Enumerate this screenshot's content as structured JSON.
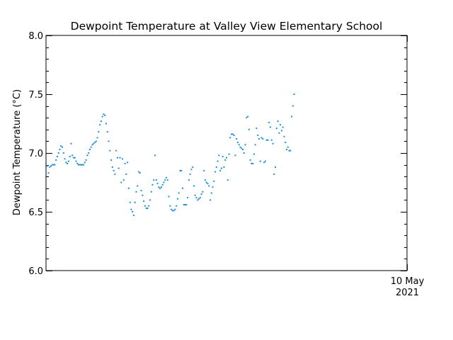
{
  "chart_data": {
    "type": "scatter",
    "title": "Dewpoint Temperature at Valley View Elementary School",
    "ylabel": "Dewpoint Temperature (°C)",
    "xlabel": "",
    "ylim": [
      6.0,
      8.0
    ],
    "yticks": [
      "6.0",
      "6.5",
      "7.0",
      "7.5",
      "8.0"
    ],
    "xlim": [
      "2021-05-09 00:00",
      "2021-05-10 00:00"
    ],
    "x_tick_labels": [
      {
        "line1": "10 May",
        "line2": "2021",
        "at": "2021-05-10 00:00"
      }
    ],
    "x_start": "2021-05-09 00:00",
    "step_minutes": 5,
    "grid": false,
    "legend": "none",
    "color": "#1f8fd8",
    "series": [
      {
        "values": [
          6.9,
          6.89,
          6.83,
          6.88,
          6.89,
          6.9,
          6.9,
          6.9,
          6.94,
          6.97,
          7.0,
          7.03,
          7.06,
          7.05,
          7.0,
          6.95,
          6.92,
          6.91,
          6.93,
          6.97,
          7.08,
          6.98,
          6.96,
          6.96,
          6.93,
          6.91,
          6.9,
          6.9,
          6.9,
          6.9,
          6.9,
          6.92,
          6.94,
          6.98,
          7.0,
          7.03,
          7.05,
          7.07,
          7.08,
          7.09,
          7.1,
          7.13,
          7.18,
          7.24,
          7.27,
          7.31,
          7.33,
          7.32,
          7.25,
          7.18,
          7.1,
          7.02,
          6.94,
          6.88,
          6.85,
          6.82,
          7.02,
          6.96,
          6.87,
          6.96,
          6.75,
          6.95,
          6.77,
          6.91,
          6.82,
          6.92,
          6.7,
          6.58,
          6.52,
          6.5,
          6.47,
          6.58,
          6.67,
          6.72,
          6.84,
          6.83,
          6.68,
          6.64,
          6.59,
          6.55,
          6.53,
          6.53,
          6.55,
          6.6,
          6.67,
          6.73,
          6.77,
          6.98,
          6.77,
          6.74,
          6.71,
          6.7,
          6.71,
          6.73,
          6.75,
          6.77,
          6.79,
          6.77,
          6.63,
          6.55,
          6.52,
          6.51,
          6.51,
          6.52,
          6.55,
          6.61,
          6.66,
          6.85,
          6.85,
          6.7,
          6.56,
          6.56,
          6.56,
          6.62,
          6.77,
          6.82,
          6.86,
          6.88,
          6.72,
          6.64,
          6.62,
          6.6,
          6.61,
          6.62,
          6.65,
          6.67,
          6.85,
          6.77,
          6.75,
          6.74,
          6.72,
          6.6,
          6.66,
          6.71,
          6.76,
          6.84,
          6.88,
          6.93,
          6.98,
          6.85,
          6.87,
          6.97,
          6.88,
          6.94,
          6.96,
          6.77,
          6.99,
          7.13,
          7.16,
          7.16,
          7.15,
          6.98,
          7.12,
          7.09,
          7.07,
          7.05,
          7.04,
          7.03,
          7.0,
          7.07,
          7.3,
          7.31,
          7.2,
          6.94,
          6.91,
          6.91,
          6.99,
          7.07,
          7.21,
          7.15,
          7.12,
          6.93,
          7.13,
          7.12,
          6.92,
          6.93,
          7.11,
          7.11,
          7.26,
          7.22,
          7.11,
          7.08,
          6.82,
          6.88,
          7.21,
          7.27,
          7.17,
          7.24,
          7.19,
          7.22,
          7.14,
          7.09,
          7.03,
          7.05,
          7.02,
          7.02,
          7.31,
          7.4,
          7.5
        ]
      }
    ]
  }
}
